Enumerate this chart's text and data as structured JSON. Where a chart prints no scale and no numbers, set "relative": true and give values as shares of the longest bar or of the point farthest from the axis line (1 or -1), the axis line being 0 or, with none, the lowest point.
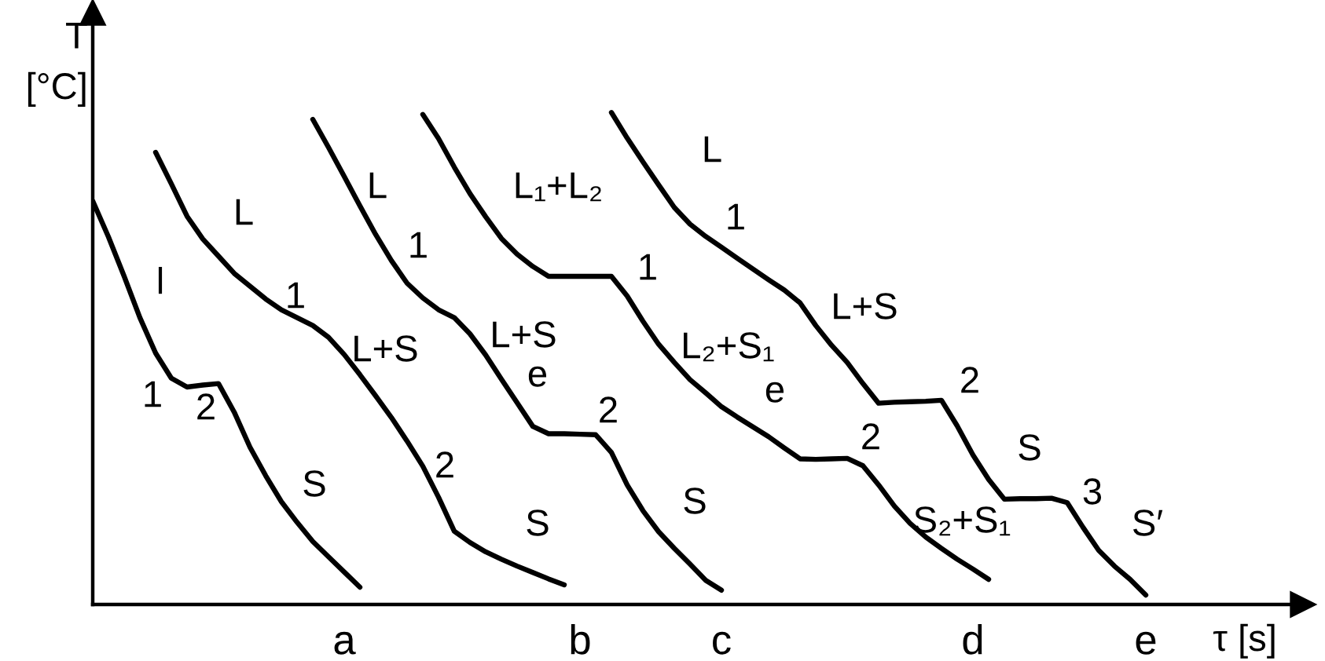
{
  "chart_data": {
    "type": "line",
    "relative": true,
    "xlabel": "τ [s]",
    "ylabel": "T [°C]",
    "tick_labels": "x",
    "categories": [
      null,
      null,
      null,
      null,
      null,
      null,
      null,
      null,
      null,
      null,
      null,
      null,
      null,
      null,
      null,
      null,
      "a",
      null,
      null,
      null,
      null,
      null,
      null,
      null,
      null,
      null,
      null,
      null,
      null,
      null,
      null,
      "b",
      null,
      null,
      null,
      null,
      null,
      null,
      null,
      null,
      "c",
      null,
      null,
      null,
      null,
      null,
      null,
      null,
      null,
      null,
      null,
      null,
      null,
      null,
      null,
      null,
      "d",
      null,
      null,
      null,
      null,
      null,
      null,
      null,
      null,
      null,
      null,
      "e",
      null,
      null,
      null,
      null,
      null,
      null,
      null,
      null,
      null,
      null
    ],
    "series": [
      {
        "color": "#000000",
        "values": [
          0.82,
          0.747,
          0.667,
          0.583,
          0.511,
          0.46,
          0.442,
          0.446,
          0.449,
          0.391,
          0.32,
          0.262,
          0.209,
          0.167,
          0.128,
          0.097,
          0.066,
          0.035,
          null,
          null,
          null,
          null,
          null,
          null,
          null,
          null,
          null,
          null,
          null,
          null,
          null,
          null,
          null,
          null,
          null,
          null,
          null,
          null,
          null,
          null,
          null,
          null,
          null,
          null,
          null,
          null,
          null,
          null,
          null,
          null,
          null,
          null,
          null,
          null,
          null,
          null,
          null,
          null,
          null,
          null,
          null,
          null,
          null,
          null,
          null,
          null,
          null,
          null,
          null,
          null,
          null,
          null,
          null,
          null,
          null,
          null,
          null,
          null
        ]
      },
      {
        "color": "#000000",
        "values": [
          null,
          null,
          null,
          null,
          0.919,
          0.855,
          0.789,
          0.743,
          0.708,
          0.673,
          0.647,
          0.621,
          0.599,
          0.583,
          0.567,
          0.543,
          0.508,
          0.467,
          0.424,
          0.38,
          0.332,
          0.281,
          0.218,
          0.149,
          0.126,
          0.107,
          0.092,
          0.078,
          0.065,
          0.052,
          0.04,
          null,
          null,
          null,
          null,
          null,
          null,
          null,
          null,
          null,
          null,
          null,
          null,
          null,
          null,
          null,
          null,
          null,
          null,
          null,
          null,
          null,
          null,
          null,
          null,
          null,
          null,
          null,
          null,
          null,
          null,
          null,
          null,
          null,
          null,
          null,
          null,
          null,
          null,
          null,
          null,
          null,
          null,
          null,
          null,
          null,
          null,
          null
        ]
      },
      {
        "color": "#000000",
        "values": [
          null,
          null,
          null,
          null,
          null,
          null,
          null,
          null,
          null,
          null,
          null,
          null,
          null,
          null,
          0.986,
          0.929,
          0.87,
          0.81,
          0.752,
          0.699,
          0.653,
          0.623,
          0.599,
          0.583,
          0.55,
          0.507,
          0.458,
          0.41,
          0.362,
          0.347,
          0.347,
          0.346,
          0.345,
          0.309,
          0.243,
          0.191,
          0.148,
          0.114,
          0.082,
          0.049,
          0.029,
          null,
          null,
          null,
          null,
          null,
          null,
          null,
          null,
          null,
          null,
          null,
          null,
          null,
          null,
          null,
          null,
          null,
          null,
          null,
          null,
          null,
          null,
          null,
          null,
          null,
          null,
          null,
          null,
          null,
          null,
          null,
          null,
          null,
          null,
          null,
          null,
          null
        ]
      },
      {
        "color": "#000000",
        "values": [
          null,
          null,
          null,
          null,
          null,
          null,
          null,
          null,
          null,
          null,
          null,
          null,
          null,
          null,
          null,
          null,
          null,
          null,
          null,
          null,
          null,
          0.996,
          0.947,
          0.889,
          0.835,
          0.788,
          0.744,
          0.712,
          0.687,
          0.667,
          0.667,
          0.667,
          0.667,
          0.667,
          0.627,
          0.576,
          0.529,
          0.492,
          0.457,
          0.43,
          0.402,
          0.381,
          0.361,
          0.341,
          0.318,
          0.296,
          0.295,
          0.296,
          0.297,
          0.282,
          0.243,
          0.2,
          0.165,
          0.137,
          0.114,
          0.092,
          0.072,
          0.051,
          null,
          null,
          null,
          null,
          null,
          null,
          null,
          null,
          null,
          null,
          null,
          null,
          null,
          null,
          null,
          null,
          null,
          null,
          null,
          null
        ]
      },
      {
        "color": "#000000",
        "values": [
          null,
          null,
          null,
          null,
          null,
          null,
          null,
          null,
          null,
          null,
          null,
          null,
          null,
          null,
          null,
          null,
          null,
          null,
          null,
          null,
          null,
          null,
          null,
          null,
          null,
          null,
          null,
          null,
          null,
          null,
          null,
          null,
          null,
          1.0,
          0.948,
          0.9,
          0.853,
          0.807,
          0.773,
          0.748,
          0.726,
          0.704,
          0.682,
          0.66,
          0.639,
          0.613,
          0.567,
          0.527,
          0.492,
          0.449,
          0.409,
          0.411,
          0.412,
          0.413,
          0.415,
          0.363,
          0.304,
          0.254,
          0.214,
          0.215,
          0.215,
          0.216,
          0.207,
          0.157,
          0.11,
          0.078,
          0.051,
          0.019,
          null,
          null,
          null,
          null,
          null,
          null,
          null,
          null,
          null,
          null
        ]
      }
    ],
    "annotations": [
      "l",
      "1",
      "2",
      "S",
      "L",
      "1",
      "L+S",
      "2",
      "S",
      "L",
      "1",
      "L+S",
      "e",
      "2",
      "S",
      "L₁+L₂",
      "1",
      "L₂+S₁",
      "e",
      "2",
      "S₂+S₁",
      "L",
      "1",
      "L+S",
      "2",
      "S",
      "3",
      "S′"
    ]
  }
}
